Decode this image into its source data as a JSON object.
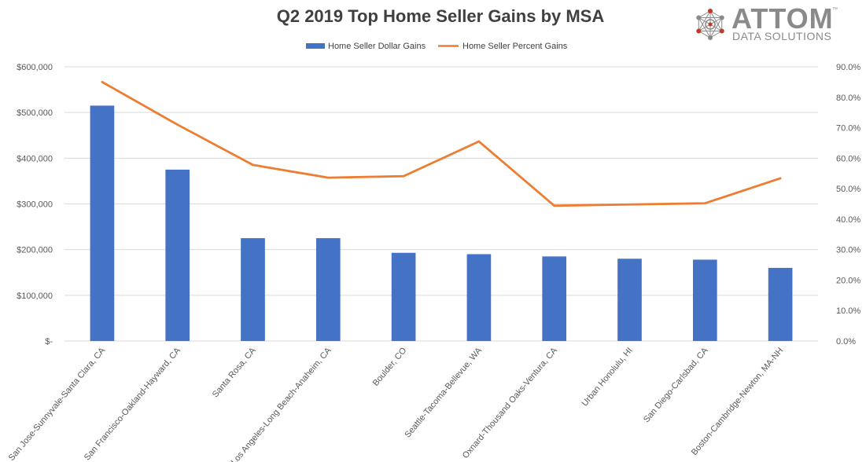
{
  "colors": {
    "bar": "#4472C4",
    "line": "#ED7D31",
    "grid": "#D9D9D9",
    "text": "#595959",
    "logo_gray": "#8A8A8A",
    "logo_red": "#C0392B"
  },
  "logo": {
    "name": "ATTOM",
    "tagline": "DATA SOLUTIONS",
    "tm": "™"
  },
  "chart_data": {
    "type": "bar",
    "title": "Q2 2019 Top Home Seller Gains by MSA",
    "categories": [
      "San Jose-Sunnyvale-Santa Clara, CA",
      "San Francisco-Oakland-Hayward, CA",
      "Santa Rosa, CA",
      "Los Angeles-Long Beach-Anaheim, CA",
      "Boulder, CO",
      "Seattle-Tacoma-Bellevue, WA",
      "Oxnard-Thousand Oaks-Ventura, CA",
      "Urban Honolulu, HI",
      "San Diego-Carlsbad, CA",
      "Boston-Cambridge-Newton, MA-NH"
    ],
    "series": [
      {
        "name": "Home Seller Dollar Gains",
        "type": "bar",
        "axis": "left",
        "values": [
          515000,
          375000,
          225000,
          225000,
          193000,
          190000,
          185000,
          180000,
          178000,
          160000
        ]
      },
      {
        "name": "Home Seller Percent Gains",
        "type": "line",
        "axis": "right",
        "values": [
          85.0,
          71.0,
          57.8,
          53.6,
          54.1,
          65.5,
          44.4,
          44.8,
          45.2,
          53.4
        ]
      }
    ],
    "y_left": {
      "ylim": [
        0,
        600000
      ],
      "ticks": [
        0,
        100000,
        200000,
        300000,
        400000,
        500000,
        600000
      ],
      "tick_labels": [
        "$-",
        "$100,000",
        "$200,000",
        "$300,000",
        "$400,000",
        "$500,000",
        "$600,000"
      ]
    },
    "y_right": {
      "ylim": [
        0,
        90
      ],
      "ticks": [
        0,
        10,
        20,
        30,
        40,
        50,
        60,
        70,
        80,
        90
      ],
      "tick_labels": [
        "0.0%",
        "10.0%",
        "20.0%",
        "30.0%",
        "40.0%",
        "50.0%",
        "60.0%",
        "70.0%",
        "80.0%",
        "90.0%"
      ]
    },
    "legend": {
      "position": "top-center",
      "items": [
        "Home Seller Dollar Gains",
        "Home Seller Percent Gains"
      ]
    },
    "grid": true,
    "xlabel": "",
    "ylabel": ""
  }
}
